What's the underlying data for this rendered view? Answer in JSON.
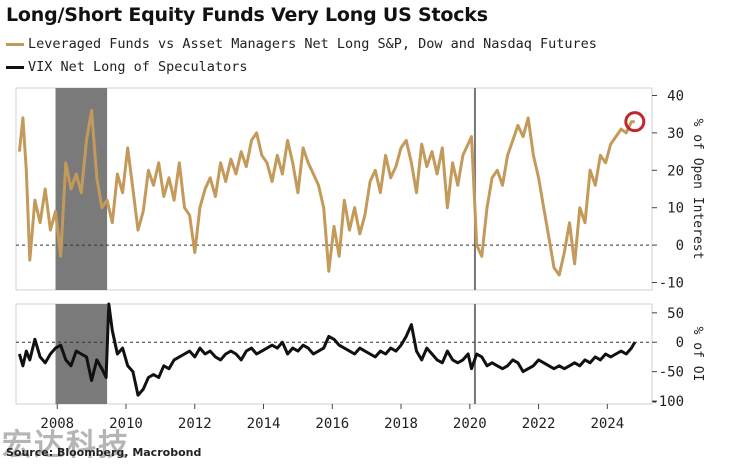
{
  "title": "Long/Short Equity Funds Very Long US Stocks",
  "source": "Source: Bloomberg, Macrobond",
  "watermark": "宏达科技",
  "colors": {
    "series1": "#c49a5a",
    "series2": "#111111",
    "shade": "#7a7a7a",
    "circle": "#c0282d"
  },
  "chart_data": [
    {
      "type": "line",
      "panel": "top",
      "ylabel": "% of Open Interest",
      "ylim": [
        -12,
        42
      ],
      "yticks": [
        -10,
        0,
        10,
        20,
        30,
        40
      ],
      "zero_line": true,
      "series": [
        {
          "name": "Leveraged Funds vs Asset Managers Net Long S&P, Dow and Nasdaq Futures",
          "x": [
            2006.9,
            2007.0,
            2007.1,
            2007.2,
            2007.35,
            2007.5,
            2007.65,
            2007.8,
            2007.95,
            2008.1,
            2008.25,
            2008.4,
            2008.55,
            2008.7,
            2008.85,
            2009.0,
            2009.15,
            2009.3,
            2009.45,
            2009.6,
            2009.75,
            2009.9,
            2010.05,
            2010.2,
            2010.35,
            2010.5,
            2010.65,
            2010.8,
            2010.95,
            2011.1,
            2011.25,
            2011.4,
            2011.55,
            2011.7,
            2011.85,
            2012.0,
            2012.15,
            2012.3,
            2012.45,
            2012.6,
            2012.75,
            2012.9,
            2013.05,
            2013.2,
            2013.35,
            2013.5,
            2013.65,
            2013.8,
            2013.95,
            2014.1,
            2014.25,
            2014.4,
            2014.55,
            2014.7,
            2014.85,
            2015.0,
            2015.15,
            2015.3,
            2015.45,
            2015.6,
            2015.75,
            2015.9,
            2016.05,
            2016.2,
            2016.35,
            2016.5,
            2016.65,
            2016.8,
            2016.95,
            2017.1,
            2017.25,
            2017.4,
            2017.55,
            2017.7,
            2017.85,
            2018.0,
            2018.15,
            2018.3,
            2018.45,
            2018.6,
            2018.75,
            2018.9,
            2019.05,
            2019.2,
            2019.35,
            2019.5,
            2019.65,
            2019.8,
            2019.95,
            2020.05,
            2020.2,
            2020.35,
            2020.5,
            2020.65,
            2020.8,
            2020.95,
            2021.1,
            2021.25,
            2021.4,
            2021.55,
            2021.7,
            2021.85,
            2022.0,
            2022.15,
            2022.3,
            2022.45,
            2022.6,
            2022.75,
            2022.9,
            2023.05,
            2023.2,
            2023.35,
            2023.5,
            2023.65,
            2023.8,
            2023.95,
            2024.1,
            2024.25,
            2024.4,
            2024.55,
            2024.7,
            2024.8
          ],
          "y": [
            25,
            34,
            20,
            -4,
            12,
            6,
            15,
            4,
            9,
            -3,
            22,
            15,
            19,
            14,
            28,
            36,
            18,
            10,
            12,
            6,
            19,
            14,
            26,
            15,
            4,
            9,
            20,
            16,
            22,
            13,
            18,
            12,
            22,
            10,
            8,
            -2,
            10,
            15,
            18,
            13,
            22,
            17,
            23,
            19,
            25,
            21,
            28,
            30,
            24,
            22,
            17,
            24,
            19,
            28,
            22,
            14,
            26,
            22,
            19,
            16,
            10,
            -7,
            5,
            -3,
            12,
            4,
            10,
            3,
            8,
            17,
            20,
            14,
            24,
            18,
            21,
            26,
            28,
            22,
            14,
            27,
            21,
            25,
            19,
            26,
            10,
            22,
            16,
            24,
            27,
            29,
            0,
            -3,
            10,
            18,
            20,
            16,
            24,
            28,
            32,
            29,
            34,
            24,
            18,
            10,
            2,
            -6,
            -8,
            -2,
            6,
            -5,
            10,
            6,
            20,
            16,
            24,
            22,
            27,
            29,
            31,
            30,
            33,
            33
          ]
        }
      ]
    },
    {
      "type": "line",
      "panel": "bottom",
      "ylabel": "% of OI",
      "ylim": [
        -105,
        65
      ],
      "yticks": [
        -100,
        -50,
        0,
        50
      ],
      "zero_line": true,
      "series": [
        {
          "name": "VIX Net Long of Speculators",
          "x": [
            2006.9,
            2007.0,
            2007.1,
            2007.2,
            2007.35,
            2007.5,
            2007.65,
            2007.8,
            2007.95,
            2008.1,
            2008.25,
            2008.4,
            2008.55,
            2008.7,
            2008.85,
            2009.0,
            2009.15,
            2009.3,
            2009.42,
            2009.5,
            2009.6,
            2009.75,
            2009.9,
            2010.05,
            2010.2,
            2010.35,
            2010.5,
            2010.65,
            2010.8,
            2010.95,
            2011.1,
            2011.25,
            2011.4,
            2011.55,
            2011.7,
            2011.85,
            2012.0,
            2012.15,
            2012.3,
            2012.45,
            2012.6,
            2012.75,
            2012.9,
            2013.05,
            2013.2,
            2013.35,
            2013.5,
            2013.65,
            2013.8,
            2013.95,
            2014.1,
            2014.25,
            2014.4,
            2014.55,
            2014.7,
            2014.85,
            2015.0,
            2015.15,
            2015.3,
            2015.45,
            2015.6,
            2015.75,
            2015.9,
            2016.05,
            2016.2,
            2016.35,
            2016.5,
            2016.65,
            2016.8,
            2016.95,
            2017.1,
            2017.25,
            2017.4,
            2017.55,
            2017.7,
            2017.85,
            2018.0,
            2018.15,
            2018.3,
            2018.45,
            2018.6,
            2018.75,
            2018.9,
            2019.05,
            2019.2,
            2019.35,
            2019.5,
            2019.65,
            2019.8,
            2019.95,
            2020.05,
            2020.2,
            2020.35,
            2020.5,
            2020.65,
            2020.8,
            2020.95,
            2021.1,
            2021.25,
            2021.4,
            2021.55,
            2021.7,
            2021.85,
            2022.0,
            2022.15,
            2022.3,
            2022.45,
            2022.6,
            2022.75,
            2022.9,
            2023.05,
            2023.2,
            2023.35,
            2023.5,
            2023.65,
            2023.8,
            2023.95,
            2024.1,
            2024.25,
            2024.4,
            2024.55,
            2024.7,
            2024.8
          ],
          "y": [
            -20,
            -40,
            -15,
            -30,
            5,
            -25,
            -35,
            -20,
            -10,
            -5,
            -30,
            -40,
            -15,
            -20,
            -25,
            -65,
            -30,
            -45,
            -60,
            65,
            20,
            -20,
            -10,
            -40,
            -50,
            -90,
            -80,
            -60,
            -55,
            -60,
            -40,
            -45,
            -30,
            -25,
            -20,
            -15,
            -25,
            -10,
            -20,
            -15,
            -25,
            -30,
            -20,
            -15,
            -20,
            -30,
            -15,
            -10,
            -20,
            -15,
            -10,
            -5,
            -10,
            0,
            -20,
            -10,
            -15,
            -5,
            -10,
            -20,
            -15,
            -10,
            10,
            5,
            -5,
            -10,
            -15,
            -20,
            -10,
            -15,
            -20,
            -25,
            -15,
            -20,
            -10,
            -15,
            -5,
            10,
            30,
            -15,
            -30,
            -10,
            -20,
            -30,
            -35,
            -15,
            -30,
            -35,
            -30,
            -20,
            -45,
            -20,
            -25,
            -40,
            -35,
            -40,
            -45,
            -40,
            -30,
            -35,
            -50,
            -45,
            -40,
            -30,
            -35,
            -40,
            -45,
            -40,
            -45,
            -40,
            -35,
            -40,
            -30,
            -35,
            -25,
            -30,
            -20,
            -25,
            -20,
            -15,
            -20,
            -10,
            0
          ]
        }
      ]
    }
  ],
  "shared_x": {
    "xlim": [
      2006.8,
      2025.3
    ],
    "ticks": [
      "2008",
      "2010",
      "2012",
      "2014",
      "2016",
      "2018",
      "2020",
      "2022",
      "2024"
    ],
    "tick_values": [
      2008,
      2010,
      2012,
      2014,
      2016,
      2018,
      2020,
      2022,
      2024
    ],
    "recession_shade": [
      2007.95,
      2009.45
    ],
    "vertical_line": 2020.15,
    "highlight_circle_x": 2024.75
  }
}
